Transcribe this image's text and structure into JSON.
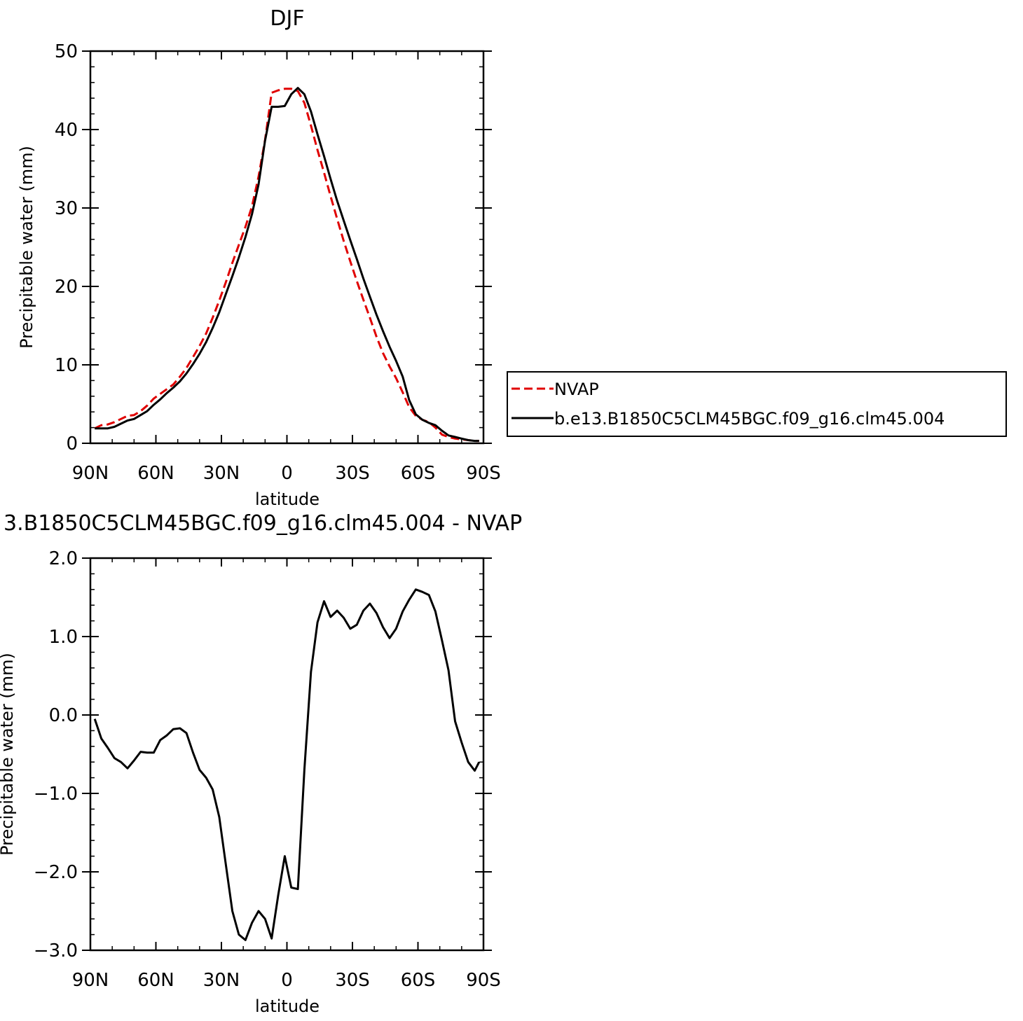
{
  "chart_data": [
    {
      "type": "line",
      "title": "DJF",
      "xlabel": "latitude",
      "ylabel": "Precipitable water (mm)",
      "xlim": [
        90,
        -90
      ],
      "ylim": [
        0,
        50
      ],
      "x_ticks": [
        {
          "value": 90,
          "label": "90N"
        },
        {
          "value": 60,
          "label": "60N"
        },
        {
          "value": 30,
          "label": "30N"
        },
        {
          "value": 0,
          "label": "0"
        },
        {
          "value": -30,
          "label": "30S"
        },
        {
          "value": -60,
          "label": "60S"
        },
        {
          "value": -90,
          "label": "90S"
        }
      ],
      "y_ticks": [
        {
          "value": 0,
          "label": "0"
        },
        {
          "value": 10,
          "label": "10"
        },
        {
          "value": 20,
          "label": "20"
        },
        {
          "value": 30,
          "label": "30"
        },
        {
          "value": 40,
          "label": "40"
        },
        {
          "value": 50,
          "label": "50"
        }
      ],
      "legend": {
        "placement": "right",
        "entries": [
          {
            "name": "NVAP",
            "color": "#e00000",
            "dash": "dashed"
          },
          {
            "name": "b.e13.B1850C5CLM45BGC.f09_g16.clm45.004",
            "color": "#000000",
            "dash": "solid"
          }
        ]
      },
      "series": [
        {
          "name": "NVAP",
          "color": "#e00000",
          "dash": "dashed",
          "x": [
            88,
            85,
            82,
            79,
            76,
            73,
            70,
            67,
            64,
            61,
            58,
            55,
            52,
            49,
            46,
            43,
            40,
            37,
            34,
            31,
            28,
            25,
            22,
            19,
            16,
            13,
            10,
            7,
            4,
            1,
            -2,
            -5,
            -8,
            -11,
            -14,
            -17,
            -20,
            -23,
            -26,
            -29,
            -32,
            -35,
            -38,
            -41,
            -44,
            -47,
            -50,
            -53,
            -56,
            -59,
            -62,
            -65,
            -68,
            -71,
            -74,
            -77,
            -80,
            -83,
            -86,
            -88
          ],
          "values": [
            1.9,
            2.3,
            2.4,
            2.7,
            3.1,
            3.5,
            3.6,
            4.1,
            4.8,
            5.7,
            6.3,
            6.9,
            7.5,
            8.5,
            9.6,
            11.0,
            12.4,
            14.0,
            16.0,
            18.2,
            20.5,
            23.0,
            25.3,
            27.6,
            30.2,
            34.0,
            38.7,
            44.7,
            45.0,
            45.2,
            45.2,
            44.9,
            43.4,
            40.5,
            37.4,
            34.5,
            31.5,
            28.6,
            25.8,
            23.2,
            20.7,
            18.3,
            16.0,
            13.6,
            11.5,
            9.8,
            8.3,
            6.5,
            4.6,
            3.5,
            3.0,
            2.7,
            2.0,
            1.1,
            0.8,
            0.6,
            0.5,
            0.4,
            0.3,
            0.3
          ]
        },
        {
          "name": "b.e13.B1850C5CLM45BGC.f09_g16.clm45.004",
          "color": "#000000",
          "dash": "solid",
          "x": [
            88,
            85,
            82,
            79,
            76,
            73,
            70,
            67,
            64,
            61,
            58,
            55,
            52,
            49,
            46,
            43,
            40,
            37,
            34,
            31,
            28,
            25,
            22,
            19,
            16,
            13,
            10,
            7,
            4,
            1,
            -2,
            -5,
            -8,
            -11,
            -14,
            -17,
            -20,
            -23,
            -26,
            -29,
            -32,
            -35,
            -38,
            -41,
            -44,
            -47,
            -50,
            -53,
            -56,
            -59,
            -62,
            -65,
            -68,
            -71,
            -74,
            -77,
            -80,
            -83,
            -86,
            -88
          ],
          "values": [
            1.9,
            1.9,
            1.9,
            2.1,
            2.5,
            2.9,
            3.1,
            3.6,
            4.1,
            4.9,
            5.6,
            6.4,
            7.1,
            7.9,
            8.9,
            10.1,
            11.4,
            12.9,
            14.7,
            16.7,
            19.0,
            21.3,
            23.7,
            26.3,
            29.2,
            33.0,
            38.6,
            42.9,
            42.9,
            43.0,
            44.5,
            45.3,
            44.5,
            42.3,
            39.4,
            36.6,
            33.7,
            30.9,
            28.4,
            25.9,
            23.5,
            21.0,
            18.7,
            16.4,
            14.3,
            12.3,
            10.5,
            8.5,
            5.5,
            3.7,
            3.0,
            2.6,
            2.3,
            1.6,
            1.0,
            0.8,
            0.6,
            0.4,
            0.3,
            0.3
          ]
        }
      ]
    },
    {
      "type": "line",
      "title": "3.B1850C5CLM45BGC.f09_g16.clm45.004 - NVAP",
      "xlabel": "latitude",
      "ylabel": "Precipitable water (mm)",
      "xlim": [
        90,
        -90
      ],
      "ylim": [
        -3.0,
        2.0
      ],
      "x_ticks": [
        {
          "value": 90,
          "label": "90N"
        },
        {
          "value": 60,
          "label": "60N"
        },
        {
          "value": 30,
          "label": "30N"
        },
        {
          "value": 0,
          "label": "0"
        },
        {
          "value": -30,
          "label": "30S"
        },
        {
          "value": -60,
          "label": "60S"
        },
        {
          "value": -90,
          "label": "90S"
        }
      ],
      "y_ticks": [
        {
          "value": 2.0,
          "label": "2.0"
        },
        {
          "value": 1.0,
          "label": "1.0"
        },
        {
          "value": 0.0,
          "label": "0.0"
        },
        {
          "value": -1.0,
          "label": "−1.0"
        },
        {
          "value": -2.0,
          "label": "−2.0"
        },
        {
          "value": -3.0,
          "label": "−3.0"
        }
      ],
      "series": [
        {
          "color": "#000000",
          "dash": "solid",
          "x": [
            88,
            85,
            82,
            79,
            76,
            73,
            70,
            67,
            64,
            61,
            58,
            55,
            52,
            49,
            46,
            43,
            40,
            37,
            34,
            31,
            28,
            25,
            22,
            19,
            16,
            13,
            10,
            7,
            4,
            1,
            -2,
            -5,
            -8,
            -11,
            -14,
            -17,
            -20,
            -23,
            -26,
            -29,
            -32,
            -35,
            -38,
            -41,
            -44,
            -47,
            -50,
            -53,
            -56,
            -59,
            -62,
            -65,
            -68,
            -71,
            -74,
            -77,
            -80,
            -83,
            -86,
            -88
          ],
          "values": [
            -0.05,
            -0.3,
            -0.42,
            -0.55,
            -0.6,
            -0.68,
            -0.58,
            -0.47,
            -0.48,
            -0.48,
            -0.32,
            -0.26,
            -0.18,
            -0.17,
            -0.23,
            -0.48,
            -0.7,
            -0.8,
            -0.95,
            -1.3,
            -1.9,
            -2.5,
            -2.8,
            -2.87,
            -2.65,
            -2.5,
            -2.6,
            -2.85,
            -2.3,
            -1.8,
            -2.2,
            -2.22,
            -0.7,
            0.55,
            1.18,
            1.45,
            1.25,
            1.33,
            1.24,
            1.1,
            1.15,
            1.33,
            1.42,
            1.3,
            1.12,
            0.98,
            1.1,
            1.32,
            1.47,
            1.6,
            1.57,
            1.53,
            1.32,
            0.95,
            0.57,
            -0.08,
            -0.35,
            -0.6,
            -0.71,
            -0.6
          ]
        }
      ]
    }
  ]
}
